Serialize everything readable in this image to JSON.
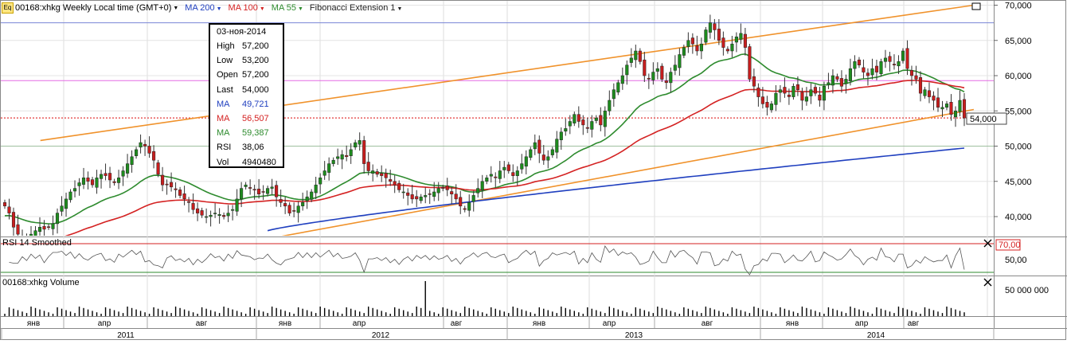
{
  "header": {
    "icon_label": "Eq",
    "symbol": "00168:xhkg Weekly Local time (GMT+0)",
    "indicators": [
      {
        "label": "MA 200",
        "color": "#1f3fbf"
      },
      {
        "label": "MA 100",
        "color": "#d42222"
      },
      {
        "label": "MA 55",
        "color": "#2e8b2e"
      },
      {
        "label": "Fibonacci Extension 1",
        "color": "#222222"
      }
    ]
  },
  "tooltip": {
    "date": "03-ноя-2014",
    "rows": [
      {
        "label": "High",
        "value": "57,200",
        "color": "#000000"
      },
      {
        "label": "Low",
        "value": "53,200",
        "color": "#000000"
      },
      {
        "label": "Open",
        "value": "57,200",
        "color": "#000000"
      },
      {
        "label": "Last",
        "value": "54,000",
        "color": "#000000"
      },
      {
        "label": "MA",
        "value": "49,721",
        "color": "#1f3fbf"
      },
      {
        "label": "MA",
        "value": "56,507",
        "color": "#d42222"
      },
      {
        "label": "MA",
        "value": "59,387",
        "color": "#2e8b2e"
      },
      {
        "label": "RSI",
        "value": "38,06",
        "color": "#000000"
      },
      {
        "label": "Vol",
        "value": "4940480",
        "color": "#000000"
      }
    ]
  },
  "price_panel": {
    "current_price_label": "54,000",
    "y_ticks": [
      "70,000",
      "65,000",
      "60,000",
      "55,000",
      "50,000",
      "45,000",
      "40,000"
    ],
    "hlines": [
      {
        "value": 67.5,
        "color": "#7a86d6"
      },
      {
        "value": 59.3,
        "color": "#e36be3"
      },
      {
        "value": 54.0,
        "color": "#e33a3a",
        "dashed": true
      },
      {
        "value": 50.0,
        "color": "#9fbf9f"
      }
    ]
  },
  "rsi_panel": {
    "title": "RSI 14 Smoothed",
    "y_ticks": [
      "70,00",
      "50,00"
    ],
    "current_label": "70,00"
  },
  "volume_panel": {
    "title": "00168:xhkg Volume",
    "y_ticks": [
      "50 000 000"
    ]
  },
  "x_axis": {
    "months": [
      "янв",
      "апр",
      "авг",
      "янв",
      "апр",
      "авг",
      "янв",
      "апр",
      "авг",
      "янв",
      "апр",
      "авг"
    ],
    "years": [
      "2011",
      "2012",
      "2013",
      "2014"
    ]
  },
  "chart_data": {
    "type": "candlestick",
    "title": "00168:xhkg Weekly",
    "xlabel": "",
    "ylabel": "",
    "ylim": [
      37000,
      71000
    ],
    "x_range": [
      "2010-12",
      "2014-11"
    ],
    "close": [
      41.5,
      40.5,
      38.5,
      37.5,
      37.2,
      37.0,
      37.5,
      38.0,
      38.5,
      38.2,
      38.5,
      39.0,
      40.5,
      41.5,
      42.5,
      43.5,
      44.0,
      44.8,
      45.5,
      45.0,
      44.5,
      45.5,
      46.0,
      45.8,
      45.2,
      44.8,
      45.5,
      46.5,
      47.5,
      48.5,
      49.5,
      50.5,
      50.0,
      49.0,
      48.0,
      46.0,
      44.5,
      44.5,
      44.2,
      43.8,
      43.0,
      42.5,
      42.0,
      41.0,
      40.5,
      40.2,
      40.0,
      40.2,
      40.5,
      40.3,
      40.0,
      40.5,
      41.0,
      42.5,
      44.0,
      44.5,
      44.0,
      43.8,
      43.2,
      43.5,
      44.0,
      44.2,
      42.8,
      42.0,
      41.5,
      40.5,
      40.8,
      41.5,
      42.0,
      42.8,
      43.5,
      44.5,
      45.5,
      46.5,
      47.5,
      48.0,
      48.5,
      48.8,
      48.5,
      49.5,
      50.5,
      50.8,
      47.5,
      46.5,
      46.5,
      46.0,
      45.8,
      45.5,
      45.0,
      44.5,
      43.8,
      43.5,
      43.0,
      42.5,
      42.5,
      42.8,
      43.0,
      43.2,
      43.5,
      44.0,
      44.0,
      43.8,
      43.2,
      42.5,
      41.5,
      41.0,
      42.0,
      43.0,
      44.0,
      45.0,
      45.5,
      46.0,
      45.5,
      46.5,
      47.0,
      46.5,
      45.8,
      46.5,
      47.5,
      48.5,
      49.5,
      50.5,
      49.0,
      48.0,
      48.5,
      49.5,
      51.0,
      52.0,
      52.5,
      53.5,
      54.5,
      53.5,
      53.0,
      52.5,
      53.5,
      54.0,
      53.0,
      55.0,
      56.5,
      58.0,
      59.0,
      60.0,
      61.5,
      62.5,
      63.5,
      62.0,
      60.0,
      59.5,
      60.5,
      61.0,
      59.5,
      59.0,
      60.5,
      61.5,
      63.0,
      64.0,
      65.0,
      64.5,
      63.5,
      64.5,
      66.5,
      67.5,
      66.5,
      65.0,
      64.0,
      63.5,
      64.5,
      65.5,
      66.0,
      64.0,
      59.5,
      58.5,
      57.0,
      56.0,
      55.5,
      56.0,
      57.5,
      58.0,
      57.5,
      57.0,
      58.5,
      58.0,
      56.5,
      57.0,
      58.0,
      57.5,
      56.5,
      58.5,
      59.0,
      60.0,
      59.5,
      58.5,
      59.5,
      61.0,
      62.0,
      61.5,
      60.5,
      60.0,
      61.0,
      60.5,
      62.0,
      62.5,
      62.0,
      61.5,
      62.0,
      63.5,
      61.0,
      60.0,
      59.5,
      57.5,
      58.0,
      57.0,
      56.5,
      55.5,
      55.5,
      56.0,
      54.5,
      55.0,
      56.5,
      54.0
    ],
    "ma_200": {
      "x_start": 2012.0,
      "start": 38.0,
      "end": 49.721
    },
    "ma_100": {
      "start": 36.0,
      "end": 56.507
    },
    "ma_55": {
      "start": 40.0,
      "end": 59.387
    },
    "fibonacci_lines": [
      {
        "from": [
          2010.9,
          50.8
        ],
        "to": [
          2014.9,
          70.0
        ]
      },
      {
        "from": [
          2011.9,
          37.0
        ],
        "to": [
          2014.9,
          55.2
        ]
      }
    ],
    "last": {
      "date": "03-ноя-2014",
      "high": 57200,
      "low": 53200,
      "open": 57200,
      "close": 54000,
      "volume": 4940480,
      "rsi": 38.06
    }
  }
}
